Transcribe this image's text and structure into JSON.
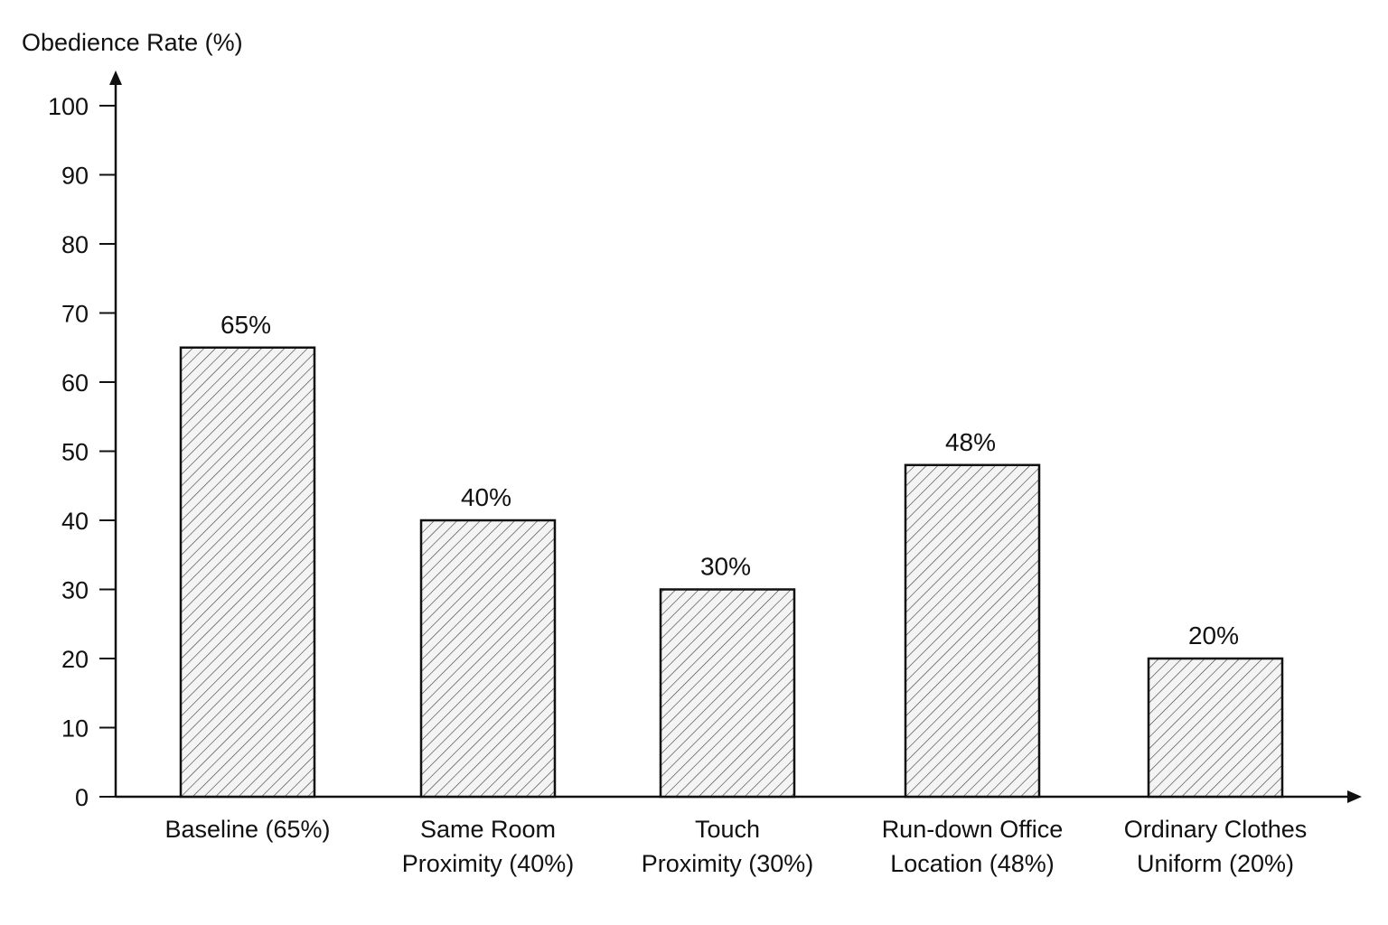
{
  "chart_data": {
    "type": "bar",
    "title": "",
    "xlabel": "",
    "ylabel": "Obedience Rate (%)",
    "ylim": [
      0,
      100
    ],
    "yticks": [
      0,
      10,
      20,
      30,
      40,
      50,
      60,
      70,
      80,
      90,
      100
    ],
    "grid": false,
    "legend": "none",
    "fill_style": "diagonal-hatch",
    "categories": [
      [
        "Baseline (65%)"
      ],
      [
        "Same Room",
        "Proximity (40%)"
      ],
      [
        "Touch",
        "Proximity (30%)"
      ],
      [
        "Run-down Office",
        "Location (48%)"
      ],
      [
        "Ordinary Clothes",
        "Uniform (20%)"
      ]
    ],
    "values": [
      65,
      40,
      30,
      48,
      20
    ],
    "data_labels": [
      "65%",
      "40%",
      "30%",
      "48%",
      "20%"
    ]
  }
}
